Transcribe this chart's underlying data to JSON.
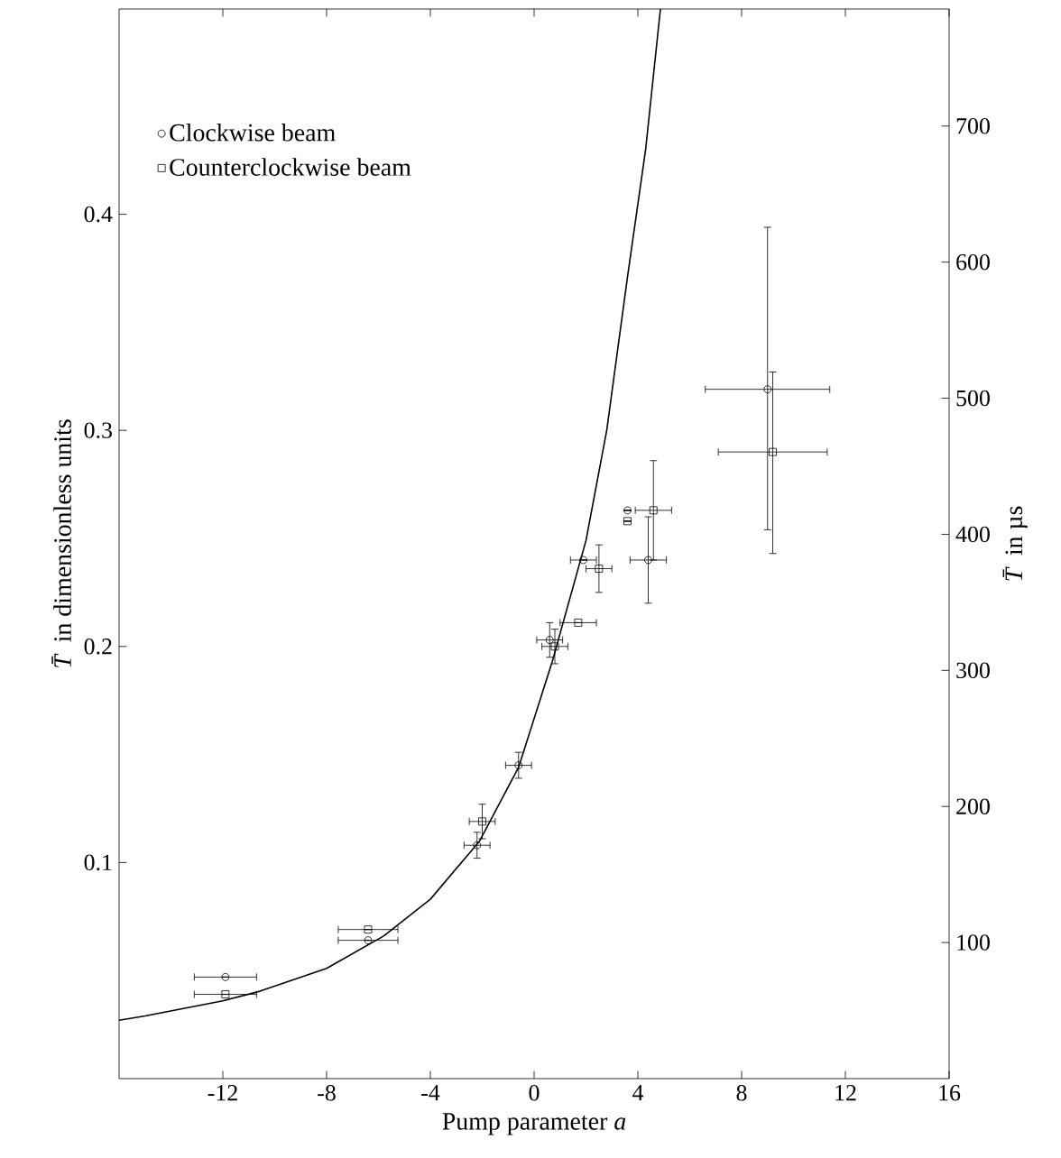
{
  "chart_data": {
    "type": "scatter",
    "xlabel": "Pump parameter *a*",
    "ylabel": "*T̄* in dimensionless units",
    "y2label": "*T̄* in µs",
    "xlim": [
      -16,
      16
    ],
    "xticks": [
      -12,
      -8,
      -4,
      0,
      4,
      8,
      12,
      16
    ],
    "ylim": [
      0,
      0.495
    ],
    "yticks": [
      0.1,
      0.2,
      0.3,
      0.4
    ],
    "y2lim": [
      0,
      786
    ],
    "y2ticks": [
      100,
      200,
      300,
      400,
      500,
      600,
      700
    ],
    "legend": "top left",
    "grid": false,
    "series": [
      {
        "name": "Clockwise beam",
        "marker": "circle",
        "color": "#000000",
        "x": [
          -11.9,
          -6.4,
          -2.2,
          -0.6,
          0.6,
          1.9,
          3.6,
          4.4,
          9.0
        ],
        "values": [
          0.047,
          0.064,
          0.108,
          0.145,
          0.203,
          0.24,
          0.263,
          0.24,
          0.319
        ],
        "xerrors": [
          1.2,
          1.15,
          0.5,
          0.5,
          0.5,
          0.5,
          null,
          0.7,
          2.4
        ],
        "errors": [
          null,
          null,
          0.006,
          0.006,
          0.008,
          null,
          null,
          [
            0.22,
            0.26
          ],
          [
            0.254,
            0.394
          ]
        ]
      },
      {
        "name": "Counterclockwise beam",
        "marker": "square",
        "color": "#000000",
        "x": [
          -11.9,
          -6.4,
          -2.0,
          0.8,
          1.7,
          2.5,
          3.6,
          4.6,
          9.2
        ],
        "values": [
          0.039,
          0.069,
          0.119,
          0.2,
          0.211,
          0.236,
          0.258,
          0.263,
          0.29
        ],
        "xerrors": [
          1.2,
          1.15,
          0.5,
          0.5,
          0.7,
          0.5,
          null,
          0.7,
          2.1
        ],
        "errors": [
          null,
          null,
          0.008,
          0.008,
          null,
          0.011,
          null,
          [
            0.24,
            0.286
          ],
          [
            0.243,
            0.327
          ]
        ]
      },
      {
        "type": "line",
        "marker": "none",
        "line_style": "solid",
        "color": "#000000",
        "x": [
          -16,
          -15,
          -12,
          -10.7,
          -8,
          -5.8,
          -4,
          -2.1,
          -0.6,
          0.7,
          2.0,
          2.8,
          3.6,
          4.3,
          4.87
        ],
        "values": [
          0.027,
          0.029,
          0.036,
          0.04,
          0.051,
          0.066,
          0.083,
          0.11,
          0.144,
          0.193,
          0.249,
          0.3,
          0.371,
          0.43,
          0.495
        ]
      }
    ]
  }
}
